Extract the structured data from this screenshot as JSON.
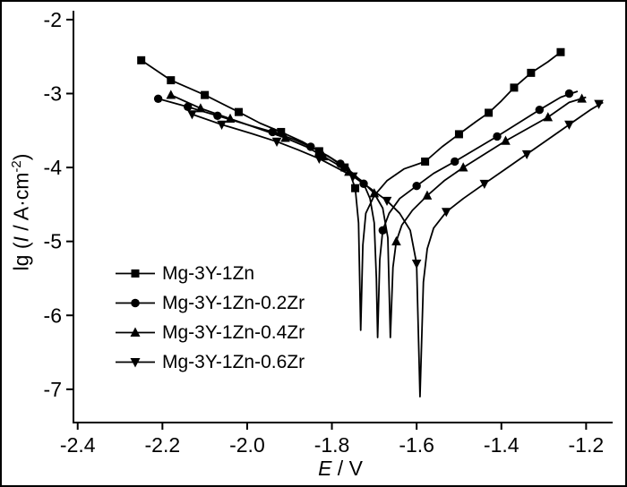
{
  "figure": {
    "xlabel": {
      "italic": "E",
      "rest": " / V"
    },
    "ylabel": {
      "prefix": "lg (",
      "italic": "I",
      "mid": " / A·cm",
      "sup": "-2",
      "suffix": ")"
    }
  },
  "chart_data": {
    "type": "line",
    "title": "",
    "xlabel": "E / V",
    "ylabel": "lg (I / A·cm^-2)",
    "grid": false,
    "legend_position": "inside-lower-left",
    "xlim": [
      -2.41,
      -1.15
    ],
    "ylim": [
      -7.45,
      -1.88
    ],
    "x_ticks": [
      -2.4,
      -2.2,
      -2.0,
      -1.8,
      -1.6,
      -1.4,
      -1.2
    ],
    "y_ticks": [
      -7,
      -6,
      -5,
      -4,
      -3,
      -2
    ],
    "series": [
      {
        "name": "Mg-3Y-1Zn",
        "marker": "square",
        "color": "#000000",
        "ecorr": -1.73,
        "line": [
          [
            -2.25,
            -2.55
          ],
          [
            -2.18,
            -2.82
          ],
          [
            -2.1,
            -3.02
          ],
          [
            -2.02,
            -3.25
          ],
          [
            -1.97,
            -3.4
          ],
          [
            -1.92,
            -3.52
          ],
          [
            -1.87,
            -3.65
          ],
          [
            -1.83,
            -3.78
          ],
          [
            -1.8,
            -3.88
          ],
          [
            -1.77,
            -4.0
          ],
          [
            -1.755,
            -4.12
          ],
          [
            -1.745,
            -4.28
          ],
          [
            -1.737,
            -4.75
          ],
          [
            -1.732,
            -6.2
          ],
          [
            -1.727,
            -5.05
          ],
          [
            -1.72,
            -4.62
          ],
          [
            -1.7,
            -4.38
          ],
          [
            -1.67,
            -4.18
          ],
          [
            -1.63,
            -4.02
          ],
          [
            -1.58,
            -3.92
          ],
          [
            -1.54,
            -3.72
          ],
          [
            -1.5,
            -3.55
          ],
          [
            -1.46,
            -3.38
          ],
          [
            -1.43,
            -3.26
          ],
          [
            -1.4,
            -3.1
          ],
          [
            -1.37,
            -2.92
          ],
          [
            -1.33,
            -2.72
          ],
          [
            -1.29,
            -2.57
          ],
          [
            -1.26,
            -2.44
          ]
        ],
        "markers": [
          [
            -2.25,
            -2.55
          ],
          [
            -2.18,
            -2.82
          ],
          [
            -2.1,
            -3.02
          ],
          [
            -2.02,
            -3.25
          ],
          [
            -1.92,
            -3.52
          ],
          [
            -1.83,
            -3.78
          ],
          [
            -1.77,
            -4.0
          ],
          [
            -1.745,
            -4.28
          ],
          [
            -1.58,
            -3.92
          ],
          [
            -1.5,
            -3.55
          ],
          [
            -1.43,
            -3.26
          ],
          [
            -1.37,
            -2.92
          ],
          [
            -1.33,
            -2.72
          ],
          [
            -1.26,
            -2.44
          ]
        ]
      },
      {
        "name": "Mg-3Y-1Zn-0.2Zr",
        "marker": "circle",
        "color": "#000000",
        "ecorr": -1.69,
        "line": [
          [
            -2.21,
            -3.07
          ],
          [
            -2.14,
            -3.18
          ],
          [
            -2.07,
            -3.3
          ],
          [
            -2.0,
            -3.42
          ],
          [
            -1.94,
            -3.52
          ],
          [
            -1.89,
            -3.62
          ],
          [
            -1.85,
            -3.72
          ],
          [
            -1.81,
            -3.84
          ],
          [
            -1.78,
            -3.95
          ],
          [
            -1.75,
            -4.08
          ],
          [
            -1.725,
            -4.22
          ],
          [
            -1.71,
            -4.42
          ],
          [
            -1.7,
            -4.75
          ],
          [
            -1.695,
            -5.5
          ],
          [
            -1.692,
            -6.3
          ],
          [
            -1.687,
            -5.25
          ],
          [
            -1.68,
            -4.85
          ],
          [
            -1.665,
            -4.62
          ],
          [
            -1.64,
            -4.42
          ],
          [
            -1.6,
            -4.25
          ],
          [
            -1.56,
            -4.08
          ],
          [
            -1.51,
            -3.92
          ],
          [
            -1.46,
            -3.75
          ],
          [
            -1.41,
            -3.58
          ],
          [
            -1.36,
            -3.4
          ],
          [
            -1.31,
            -3.22
          ],
          [
            -1.26,
            -3.05
          ],
          [
            -1.22,
            -2.97
          ]
        ],
        "markers": [
          [
            -2.21,
            -3.07
          ],
          [
            -2.14,
            -3.18
          ],
          [
            -2.07,
            -3.3
          ],
          [
            -1.94,
            -3.52
          ],
          [
            -1.85,
            -3.72
          ],
          [
            -1.78,
            -3.95
          ],
          [
            -1.725,
            -4.22
          ],
          [
            -1.68,
            -4.85
          ],
          [
            -1.6,
            -4.25
          ],
          [
            -1.51,
            -3.92
          ],
          [
            -1.41,
            -3.58
          ],
          [
            -1.31,
            -3.22
          ],
          [
            -1.24,
            -3.0
          ]
        ]
      },
      {
        "name": "Mg-3Y-1Zn-0.4Zr",
        "marker": "triangle-up",
        "color": "#000000",
        "ecorr": -1.66,
        "line": [
          [
            -2.18,
            -3.02
          ],
          [
            -2.11,
            -3.2
          ],
          [
            -2.04,
            -3.34
          ],
          [
            -1.97,
            -3.48
          ],
          [
            -1.91,
            -3.6
          ],
          [
            -1.86,
            -3.72
          ],
          [
            -1.82,
            -3.85
          ],
          [
            -1.79,
            -3.95
          ],
          [
            -1.76,
            -4.06
          ],
          [
            -1.73,
            -4.18
          ],
          [
            -1.7,
            -4.35
          ],
          [
            -1.68,
            -4.55
          ],
          [
            -1.668,
            -4.95
          ],
          [
            -1.662,
            -6.3
          ],
          [
            -1.656,
            -5.35
          ],
          [
            -1.648,
            -5.0
          ],
          [
            -1.635,
            -4.78
          ],
          [
            -1.61,
            -4.58
          ],
          [
            -1.575,
            -4.38
          ],
          [
            -1.535,
            -4.18
          ],
          [
            -1.49,
            -4.0
          ],
          [
            -1.44,
            -3.82
          ],
          [
            -1.39,
            -3.64
          ],
          [
            -1.34,
            -3.48
          ],
          [
            -1.29,
            -3.32
          ],
          [
            -1.24,
            -3.12
          ],
          [
            -1.2,
            -3.05
          ]
        ],
        "markers": [
          [
            -2.18,
            -3.02
          ],
          [
            -2.11,
            -3.2
          ],
          [
            -2.04,
            -3.34
          ],
          [
            -1.91,
            -3.6
          ],
          [
            -1.82,
            -3.85
          ],
          [
            -1.76,
            -4.06
          ],
          [
            -1.7,
            -4.35
          ],
          [
            -1.648,
            -5.0
          ],
          [
            -1.575,
            -4.38
          ],
          [
            -1.49,
            -4.0
          ],
          [
            -1.39,
            -3.64
          ],
          [
            -1.29,
            -3.32
          ],
          [
            -1.21,
            -3.07
          ]
        ]
      },
      {
        "name": "Mg-3Y-1Zn-0.6Zr",
        "marker": "triangle-down",
        "color": "#000000",
        "ecorr": -1.59,
        "line": [
          [
            -2.13,
            -3.28
          ],
          [
            -2.06,
            -3.42
          ],
          [
            -1.99,
            -3.54
          ],
          [
            -1.93,
            -3.65
          ],
          [
            -1.88,
            -3.76
          ],
          [
            -1.83,
            -3.88
          ],
          [
            -1.79,
            -4.0
          ],
          [
            -1.75,
            -4.12
          ],
          [
            -1.71,
            -4.28
          ],
          [
            -1.67,
            -4.45
          ],
          [
            -1.64,
            -4.62
          ],
          [
            -1.615,
            -4.85
          ],
          [
            -1.6,
            -5.3
          ],
          [
            -1.592,
            -7.1
          ],
          [
            -1.584,
            -5.55
          ],
          [
            -1.575,
            -5.1
          ],
          [
            -1.56,
            -4.82
          ],
          [
            -1.53,
            -4.6
          ],
          [
            -1.49,
            -4.42
          ],
          [
            -1.44,
            -4.22
          ],
          [
            -1.39,
            -4.02
          ],
          [
            -1.34,
            -3.82
          ],
          [
            -1.29,
            -3.62
          ],
          [
            -1.24,
            -3.42
          ],
          [
            -1.19,
            -3.22
          ],
          [
            -1.16,
            -3.12
          ]
        ],
        "markers": [
          [
            -2.13,
            -3.28
          ],
          [
            -2.06,
            -3.42
          ],
          [
            -1.93,
            -3.65
          ],
          [
            -1.83,
            -3.88
          ],
          [
            -1.75,
            -4.12
          ],
          [
            -1.67,
            -4.45
          ],
          [
            -1.6,
            -5.3
          ],
          [
            -1.53,
            -4.6
          ],
          [
            -1.44,
            -4.22
          ],
          [
            -1.34,
            -3.82
          ],
          [
            -1.24,
            -3.42
          ],
          [
            -1.17,
            -3.14
          ]
        ]
      }
    ]
  }
}
